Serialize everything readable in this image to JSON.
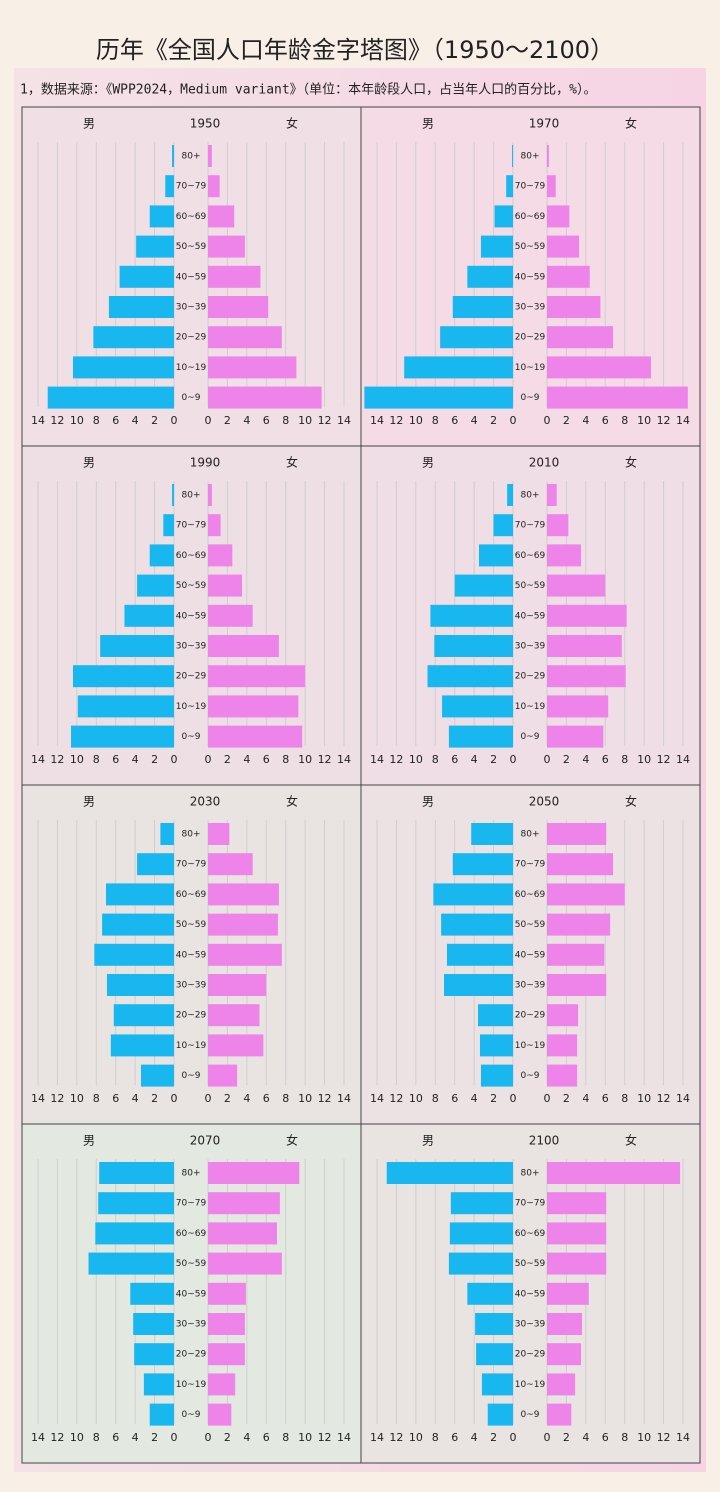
{
  "title": "历年《全国人口年龄金字塔图》（1950～2100）",
  "subtitle": "1，数据来源：《WPP2024，Medium variant》（单位：本年龄段人口，占当年人口的百分比，%）。",
  "chart_data": [
    {
      "type": "pyramid",
      "title": "1950",
      "categories": [
        "80+",
        "70~79",
        "60~69",
        "50~59",
        "40~59",
        "30~39",
        "20~29",
        "10~19",
        "0~9"
      ],
      "xlim": [
        0,
        14
      ],
      "xticks": [
        0,
        2,
        4,
        6,
        8,
        10,
        12,
        14
      ],
      "grid": true,
      "series": [
        {
          "name": "男",
          "color": "#19b7f0",
          "values": [
            0.2,
            0.9,
            2.5,
            3.9,
            5.6,
            6.7,
            8.3,
            10.4,
            13.0
          ]
        },
        {
          "name": "女",
          "color": "#ee84ea",
          "values": [
            0.4,
            1.2,
            2.7,
            3.8,
            5.4,
            6.2,
            7.6,
            9.1,
            11.7
          ]
        }
      ]
    },
    {
      "type": "pyramid",
      "title": "1970",
      "categories": [
        "80+",
        "70~79",
        "60~69",
        "50~59",
        "40~59",
        "30~39",
        "20~29",
        "10~19",
        "0~9"
      ],
      "xlim": [
        0,
        14
      ],
      "xticks": [
        0,
        2,
        4,
        6,
        8,
        10,
        12,
        14
      ],
      "grid": true,
      "series": [
        {
          "name": "男",
          "color": "#19b7f0",
          "values": [
            0.1,
            0.7,
            1.9,
            3.3,
            4.7,
            6.2,
            7.5,
            11.2,
            15.3
          ]
        },
        {
          "name": "女",
          "color": "#ee84ea",
          "values": [
            0.2,
            0.9,
            2.3,
            3.3,
            4.4,
            5.5,
            6.8,
            10.7,
            14.5
          ]
        }
      ]
    },
    {
      "type": "pyramid",
      "title": "1990",
      "categories": [
        "80+",
        "70~79",
        "60~69",
        "50~59",
        "40~59",
        "30~39",
        "20~29",
        "10~19",
        "0~9"
      ],
      "xlim": [
        0,
        14
      ],
      "xticks": [
        0,
        2,
        4,
        6,
        8,
        10,
        12,
        14
      ],
      "grid": true,
      "series": [
        {
          "name": "男",
          "color": "#19b7f0",
          "values": [
            0.2,
            1.1,
            2.5,
            3.8,
            5.1,
            7.6,
            10.4,
            9.9,
            10.6
          ]
        },
        {
          "name": "女",
          "color": "#ee84ea",
          "values": [
            0.4,
            1.3,
            2.5,
            3.5,
            4.6,
            7.3,
            10.0,
            9.3,
            9.7
          ]
        }
      ]
    },
    {
      "type": "pyramid",
      "title": "2010",
      "categories": [
        "80+",
        "70~79",
        "60~69",
        "50~59",
        "40~59",
        "30~39",
        "20~29",
        "10~19",
        "0~9"
      ],
      "xlim": [
        0,
        14
      ],
      "xticks": [
        0,
        2,
        4,
        6,
        8,
        10,
        12,
        14
      ],
      "grid": true,
      "series": [
        {
          "name": "男",
          "color": "#19b7f0",
          "values": [
            0.6,
            2.0,
            3.5,
            6.0,
            8.5,
            8.1,
            8.8,
            7.3,
            6.6
          ]
        },
        {
          "name": "女",
          "color": "#ee84ea",
          "values": [
            1.0,
            2.2,
            3.5,
            6.0,
            8.2,
            7.7,
            8.1,
            6.3,
            5.8
          ]
        }
      ]
    },
    {
      "type": "pyramid",
      "title": "2030",
      "categories": [
        "80+",
        "70~79",
        "60~69",
        "50~59",
        "40~59",
        "30~39",
        "20~29",
        "10~19",
        "0~9"
      ],
      "xlim": [
        0,
        14
      ],
      "xticks": [
        0,
        2,
        4,
        6,
        8,
        10,
        12,
        14
      ],
      "grid": true,
      "series": [
        {
          "name": "男",
          "color": "#19b7f0",
          "values": [
            1.4,
            3.8,
            7.0,
            7.4,
            8.2,
            6.9,
            6.2,
            6.5,
            3.4
          ]
        },
        {
          "name": "女",
          "color": "#ee84ea",
          "values": [
            2.2,
            4.6,
            7.3,
            7.2,
            7.6,
            6.0,
            5.3,
            5.7,
            3.0
          ]
        }
      ]
    },
    {
      "type": "pyramid",
      "title": "2050",
      "categories": [
        "80+",
        "70~79",
        "60~69",
        "50~59",
        "40~59",
        "30~39",
        "20~29",
        "10~19",
        "0~9"
      ],
      "xlim": [
        0,
        14
      ],
      "xticks": [
        0,
        2,
        4,
        6,
        8,
        10,
        12,
        14
      ],
      "grid": true,
      "series": [
        {
          "name": "男",
          "color": "#19b7f0",
          "values": [
            4.3,
            6.2,
            8.2,
            7.4,
            6.8,
            7.1,
            3.6,
            3.4,
            3.3
          ]
        },
        {
          "name": "女",
          "color": "#ee84ea",
          "values": [
            6.1,
            6.8,
            8.0,
            6.5,
            5.9,
            6.1,
            3.2,
            3.1,
            3.1
          ]
        }
      ]
    },
    {
      "type": "pyramid",
      "title": "2070",
      "categories": [
        "80+",
        "70~79",
        "60~69",
        "50~59",
        "40~59",
        "30~39",
        "20~29",
        "10~19",
        "0~9"
      ],
      "xlim": [
        0,
        14
      ],
      "xticks": [
        0,
        2,
        4,
        6,
        8,
        10,
        12,
        14
      ],
      "grid": true,
      "series": [
        {
          "name": "男",
          "color": "#19b7f0",
          "values": [
            7.7,
            7.8,
            8.1,
            8.8,
            4.5,
            4.2,
            4.1,
            3.1,
            2.5
          ]
        },
        {
          "name": "女",
          "color": "#ee84ea",
          "values": [
            9.4,
            7.4,
            7.1,
            7.6,
            3.9,
            3.8,
            3.8,
            2.8,
            2.4
          ]
        }
      ]
    },
    {
      "type": "pyramid",
      "title": "2100",
      "categories": [
        "80+",
        "70~79",
        "60~69",
        "50~59",
        "40~59",
        "30~39",
        "20~29",
        "10~19",
        "0~9"
      ],
      "xlim": [
        0,
        14
      ],
      "xticks": [
        0,
        2,
        4,
        6,
        8,
        10,
        12,
        14
      ],
      "grid": true,
      "series": [
        {
          "name": "男",
          "color": "#19b7f0",
          "values": [
            13.0,
            6.4,
            6.5,
            6.6,
            4.7,
            3.9,
            3.8,
            3.2,
            2.6
          ]
        },
        {
          "name": "女",
          "color": "#ee84ea",
          "values": [
            13.7,
            6.1,
            6.1,
            6.1,
            4.3,
            3.6,
            3.5,
            2.9,
            2.5
          ]
        }
      ]
    }
  ]
}
